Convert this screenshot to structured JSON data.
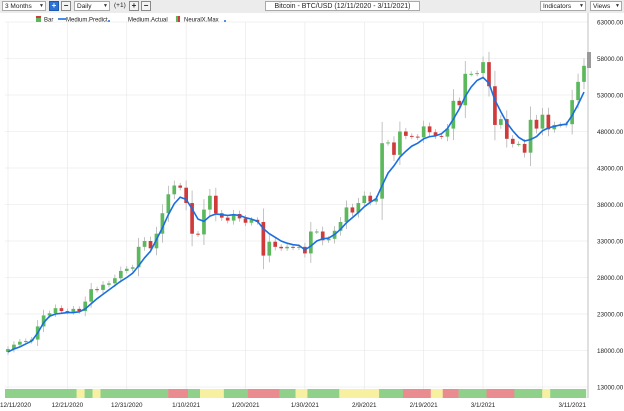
{
  "toolbar": {
    "period": "3 Months",
    "interval": "Daily",
    "offset": "(+1)",
    "title": "Bitcoin - BTC/USD (12/11/2020 - 3/11/2021)",
    "indicators": "Indicators",
    "views": "Views"
  },
  "colors": {
    "up": "#5cb85c",
    "down": "#d03a3a",
    "predict": "#1a6fe0",
    "neural_green": "#8fd18a",
    "neural_yellow": "#f6f0a0",
    "neural_red": "#e98b8f"
  },
  "chart_data": {
    "type": "candlestick",
    "title": "Bitcoin - BTC/USD (12/11/2020 - 3/11/2021)",
    "legend": [
      "Bar",
      "Medium.Predict",
      "Medium.Actual",
      "NeuralX.Max"
    ],
    "legend_position": "top-left",
    "ylim": [
      13000,
      63000
    ],
    "yticks": [
      "63000.00",
      "58000.00",
      "53000.00",
      "48000.00",
      "43000.00",
      "38000.00",
      "33000.00",
      "28000.00",
      "23000.00",
      "18000.00",
      "13000.00"
    ],
    "xticks": [
      "12/11/2020",
      "12/21/2020",
      "12/31/2020",
      "1/10/2021",
      "1/20/2021",
      "1/30/2021",
      "2/9/2021",
      "2/19/2021",
      "3/1/2021",
      "3/11/2021"
    ],
    "grid": true,
    "close": [
      18200,
      18800,
      19200,
      19300,
      19500,
      21300,
      22800,
      23100,
      23800,
      23400,
      23300,
      23700,
      23400,
      24700,
      26400,
      26300,
      27000,
      27200,
      27900,
      28900,
      29200,
      29400,
      32200,
      33000,
      32000,
      34000,
      36800,
      39400,
      40600,
      40300,
      38200,
      34000,
      33900,
      37300,
      39200,
      36800,
      36200,
      35800,
      36700,
      36100,
      35500,
      35900,
      35600,
      31000,
      32900,
      32200,
      32000,
      32200,
      32100,
      32200,
      31300,
      34300,
      34300,
      33100,
      33300,
      34400,
      35600,
      37600,
      36900,
      38200,
      39200,
      38400,
      38800,
      46400,
      46500,
      44800,
      48000,
      47400,
      47300,
      47200,
      48700,
      47900,
      47400,
      47300,
      48400,
      52200,
      51600,
      55900,
      55900,
      56000,
      57500,
      54200,
      48900,
      49700,
      47000,
      46300,
      46300,
      45100,
      49600,
      48400,
      50300,
      48300,
      48900,
      48900,
      49000,
      52300,
      54800,
      57000
    ],
    "predict": [
      17800,
      18200,
      18500,
      18900,
      19300,
      20400,
      21800,
      22700,
      23000,
      23100,
      23200,
      23200,
      23300,
      23700,
      24400,
      25100,
      25700,
      26300,
      26900,
      27500,
      28000,
      28600,
      29600,
      30700,
      31600,
      33200,
      34800,
      36600,
      38100,
      39000,
      38700,
      37400,
      36000,
      35700,
      36400,
      36700,
      36600,
      36500,
      36600,
      36500,
      36200,
      36000,
      35700,
      34700,
      34000,
      33500,
      33000,
      32700,
      32500,
      32400,
      31800,
      32300,
      33000,
      33300,
      33400,
      33900,
      34600,
      35500,
      36200,
      36900,
      37700,
      38300,
      38800,
      40600,
      42300,
      43300,
      44500,
      45300,
      46000,
      46400,
      47000,
      47300,
      47400,
      47700,
      48400,
      49700,
      51100,
      52800,
      54100,
      55000,
      55400,
      54600,
      52300,
      50700,
      49200,
      48100,
      47200,
      46700,
      46900,
      47300,
      48100,
      48500,
      48700,
      48900,
      49000,
      50200,
      51700,
      53400
    ],
    "neural_max": [
      {
        "start": 0,
        "end": 17,
        "state": "green"
      },
      {
        "start": 18,
        "end": 19,
        "state": "yellow"
      },
      {
        "start": 20,
        "end": 21,
        "state": "green"
      },
      {
        "start": 22,
        "end": 23,
        "state": "yellow"
      },
      {
        "start": 24,
        "end": 40,
        "state": "green"
      },
      {
        "start": 41,
        "end": 45,
        "state": "red"
      },
      {
        "start": 46,
        "end": 48,
        "state": "green"
      },
      {
        "start": 49,
        "end": 54,
        "state": "yellow"
      },
      {
        "start": 55,
        "end": 60,
        "state": "green"
      },
      {
        "start": 61,
        "end": 68,
        "state": "red"
      },
      {
        "start": 69,
        "end": 72,
        "state": "green"
      },
      {
        "start": 73,
        "end": 75,
        "state": "yellow"
      },
      {
        "start": 76,
        "end": 83,
        "state": "green"
      },
      {
        "start": 84,
        "end": 93,
        "state": "yellow"
      },
      {
        "start": 94,
        "end": 99,
        "state": "green"
      },
      {
        "start": 100,
        "end": 106,
        "state": "red"
      },
      {
        "start": 107,
        "end": 109,
        "state": "yellow"
      },
      {
        "start": 110,
        "end": 113,
        "state": "red"
      },
      {
        "start": 114,
        "end": 120,
        "state": "green"
      },
      {
        "start": 121,
        "end": 127,
        "state": "red"
      },
      {
        "start": 128,
        "end": 134,
        "state": "green"
      },
      {
        "start": 135,
        "end": 136,
        "state": "yellow"
      },
      {
        "start": 137,
        "end": 145,
        "state": "green"
      }
    ]
  }
}
